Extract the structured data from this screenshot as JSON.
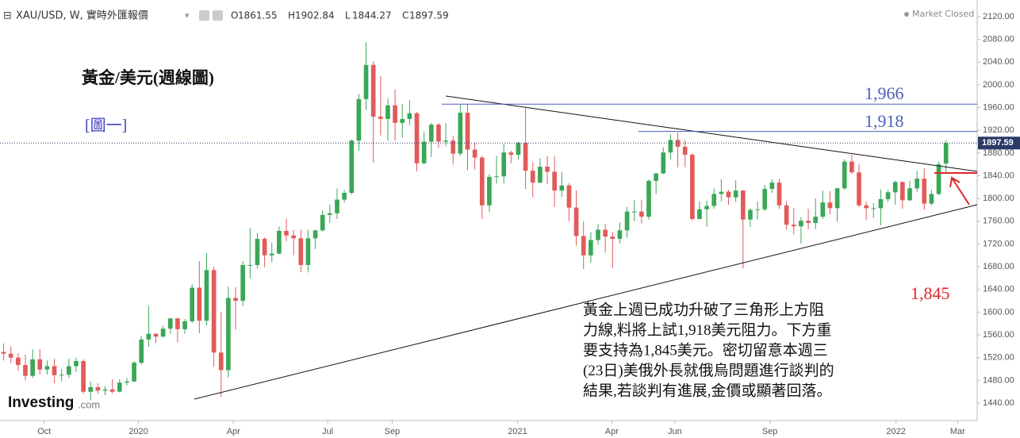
{
  "chart_data": {
    "type": "candlestick",
    "title": "XAU/USD, W, 實時外匯報價",
    "ohlc_labels": {
      "open": "O",
      "high": "H",
      "low": "L",
      "close": "C"
    },
    "status": "Market Closed",
    "heading": "黃金/美元(週線圖)",
    "figure_label": "[圖一]",
    "brand": {
      "name": "Investing",
      "suffix": ".com"
    },
    "commentary": [
      "黃金上週已成功升破了三角形上方阻",
      "力線,料將上試1,918美元阻力。下方重",
      "要支持為1,845美元。密切留意本週三",
      "(23日)美俄外長就俄烏問題進行談判的",
      "結果,若談判有進展,金價或顯著回落。"
    ],
    "up_color": "#3aa757",
    "down_color": "#e25a5a",
    "open": [
      1530,
      1527,
      1520,
      1507,
      1488,
      1517,
      1499,
      1505,
      1489,
      1490,
      1505,
      1514,
      1460,
      1468,
      1462,
      1464,
      1460,
      1476,
      1478,
      1511,
      1552,
      1562,
      1557,
      1571,
      1589,
      1570,
      1584,
      1643,
      1585,
      1674,
      1529,
      1498,
      1625,
      1620,
      1683,
      1683,
      1729,
      1700,
      1703,
      1743,
      1735,
      1730,
      1683,
      1730,
      1744,
      1771,
      1774,
      1798,
      1810,
      1902,
      1975,
      2035,
      1944,
      1940,
      1964,
      1933,
      1940,
      1950,
      1862,
      1900,
      1930,
      1900,
      1902,
      1879,
      1951,
      1886,
      1872,
      1788,
      1838,
      1839,
      1881,
      1877,
      1898,
      1849,
      1828,
      1856,
      1847,
      1814,
      1823,
      1784,
      1734,
      1700,
      1727,
      1745,
      1733,
      1729,
      1744,
      1777,
      1777,
      1768,
      1831,
      1844,
      1881,
      1903,
      1891,
      1877,
      1764,
      1781,
      1787,
      1808,
      1812,
      1802,
      1814,
      1763,
      1780,
      1781,
      1817,
      1828,
      1788,
      1754,
      1751,
      1761,
      1757,
      1768,
      1793,
      1783,
      1818,
      1865,
      1846,
      1788,
      1783,
      1783,
      1799,
      1811,
      1829,
      1797,
      1818,
      1835,
      1791,
      1808,
      1861.55
    ],
    "high": [
      1545,
      1540,
      1528,
      1525,
      1535,
      1535,
      1515,
      1518,
      1500,
      1518,
      1520,
      1517,
      1478,
      1475,
      1470,
      1482,
      1482,
      1484,
      1514,
      1558,
      1611,
      1563,
      1576,
      1590,
      1590,
      1588,
      1649,
      1690,
      1704,
      1680,
      1600,
      1645,
      1644,
      1690,
      1748,
      1739,
      1732,
      1722,
      1751,
      1765,
      1745,
      1745,
      1745,
      1745,
      1779,
      1789,
      1818,
      1815,
      1904,
      1984,
      2075,
      2042,
      2015,
      1976,
      1992,
      1966,
      1973,
      1952,
      1918,
      1933,
      1933,
      1933,
      1910,
      1965,
      1966,
      1898,
      1875,
      1843,
      1875,
      1896,
      1884,
      1900,
      1959,
      1864,
      1871,
      1875,
      1875,
      1847,
      1827,
      1814,
      1760,
      1741,
      1755,
      1755,
      1741,
      1758,
      1785,
      1797,
      1798,
      1834,
      1845,
      1890,
      1913,
      1916,
      1903,
      1880,
      1795,
      1796,
      1818,
      1834,
      1815,
      1832,
      1815,
      1783,
      1795,
      1824,
      1834,
      1834,
      1796,
      1783,
      1767,
      1782,
      1800,
      1814,
      1813,
      1819,
      1869,
      1877,
      1860,
      1795,
      1792,
      1816,
      1815,
      1831,
      1830,
      1831,
      1848,
      1853,
      1815,
      1865,
      1902.84
    ],
    "low": [
      1515,
      1510,
      1497,
      1480,
      1484,
      1490,
      1490,
      1475,
      1478,
      1484,
      1495,
      1456,
      1445,
      1456,
      1454,
      1457,
      1459,
      1471,
      1477,
      1508,
      1539,
      1546,
      1555,
      1562,
      1547,
      1562,
      1581,
      1563,
      1577,
      1504,
      1451,
      1485,
      1569,
      1611,
      1660,
      1677,
      1679,
      1688,
      1702,
      1725,
      1700,
      1670,
      1670,
      1711,
      1742,
      1757,
      1764,
      1793,
      1807,
      1884,
      1956,
      1863,
      1911,
      1902,
      1902,
      1907,
      1929,
      1848,
      1860,
      1873,
      1889,
      1892,
      1860,
      1875,
      1850,
      1851,
      1764,
      1776,
      1826,
      1826,
      1862,
      1869,
      1817,
      1802,
      1827,
      1826,
      1785,
      1803,
      1760,
      1717,
      1676,
      1687,
      1719,
      1705,
      1677,
      1721,
      1731,
      1760,
      1756,
      1763,
      1808,
      1843,
      1869,
      1855,
      1855,
      1761,
      1763,
      1750,
      1782,
      1795,
      1789,
      1794,
      1677,
      1750,
      1763,
      1778,
      1810,
      1782,
      1745,
      1737,
      1721,
      1746,
      1746,
      1764,
      1772,
      1759,
      1815,
      1843,
      1785,
      1762,
      1766,
      1753,
      1794,
      1789,
      1782,
      1795,
      1812,
      1780,
      1788,
      1806,
      1844.27
    ],
    "close": [
      1527,
      1520,
      1507,
      1488,
      1517,
      1499,
      1505,
      1489,
      1490,
      1505,
      1514,
      1460,
      1468,
      1462,
      1464,
      1460,
      1476,
      1478,
      1511,
      1552,
      1562,
      1557,
      1571,
      1589,
      1570,
      1584,
      1643,
      1585,
      1674,
      1529,
      1498,
      1625,
      1620,
      1683,
      1683,
      1729,
      1700,
      1703,
      1743,
      1735,
      1730,
      1683,
      1730,
      1744,
      1771,
      1774,
      1798,
      1810,
      1902,
      1975,
      2035,
      1944,
      1940,
      1964,
      1933,
      1940,
      1950,
      1862,
      1900,
      1930,
      1900,
      1902,
      1879,
      1951,
      1886,
      1872,
      1788,
      1838,
      1839,
      1881,
      1877,
      1898,
      1849,
      1828,
      1856,
      1847,
      1814,
      1823,
      1784,
      1734,
      1700,
      1727,
      1745,
      1733,
      1729,
      1744,
      1777,
      1777,
      1768,
      1831,
      1844,
      1881,
      1903,
      1891,
      1877,
      1764,
      1781,
      1787,
      1808,
      1812,
      1802,
      1814,
      1763,
      1780,
      1781,
      1817,
      1828,
      1788,
      1754,
      1751,
      1761,
      1757,
      1768,
      1793,
      1783,
      1818,
      1865,
      1846,
      1788,
      1783,
      1783,
      1799,
      1811,
      1829,
      1797,
      1818,
      1835,
      1791,
      1808,
      1860,
      1897.59
    ],
    "levels": [
      {
        "value": 1966,
        "label": "1,966",
        "color": "#4a5fb5"
      },
      {
        "value": 1918,
        "label": "1,918",
        "color": "#4a5fb5"
      },
      {
        "value": 1845,
        "label": "1,845",
        "color": "#e0262c"
      }
    ],
    "xlim": [
      -0.5,
      134.3
    ],
    "xticks": [
      {
        "value": 5.6,
        "label": "Oct"
      },
      {
        "value": 18.6,
        "label": "2020"
      },
      {
        "value": 31.7,
        "label": "Apr"
      },
      {
        "value": 44.7,
        "label": "Jul"
      },
      {
        "value": 53.6,
        "label": "Sep"
      },
      {
        "value": 70.9,
        "label": "2021"
      },
      {
        "value": 83.9,
        "label": "Apr"
      },
      {
        "value": 92.6,
        "label": "Jun"
      },
      {
        "value": 105.7,
        "label": "Sep"
      },
      {
        "value": 123.1,
        "label": "2022"
      },
      {
        "value": 131.6,
        "label": "Mar"
      }
    ],
    "ylim": [
      1409.3,
      2149.3
    ],
    "yticks": [
      {
        "value": 1440,
        "label": "1440.00"
      },
      {
        "value": 1480,
        "label": "1480.00"
      },
      {
        "value": 1520,
        "label": "1520.00"
      },
      {
        "value": 1560,
        "label": "1560.00"
      },
      {
        "value": 1600,
        "label": "1600.00"
      },
      {
        "value": 1640,
        "label": "1640.00"
      },
      {
        "value": 1680,
        "label": "1680.00"
      },
      {
        "value": 1720,
        "label": "1720.00"
      },
      {
        "value": 1760,
        "label": "1760.00"
      },
      {
        "value": 1800,
        "label": "1800.00"
      },
      {
        "value": 1840,
        "label": "1840.00"
      },
      {
        "value": 1880,
        "label": "1880.00"
      },
      {
        "value": 1920,
        "label": "1920.00"
      },
      {
        "value": 1960,
        "label": "1960.00"
      },
      {
        "value": 2000,
        "label": "2000.00"
      },
      {
        "value": 2040,
        "label": "2040.00"
      },
      {
        "value": 2080,
        "label": "2080.00"
      },
      {
        "value": 2120,
        "label": "2120.00"
      }
    ]
  }
}
